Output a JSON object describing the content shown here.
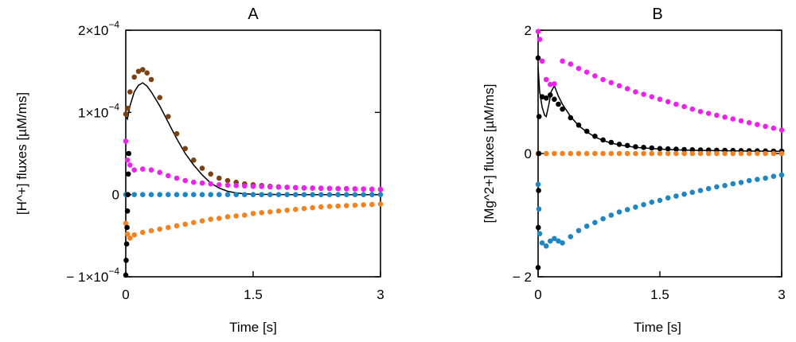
{
  "chart_data": [
    {
      "type": "scatter",
      "title": "A",
      "xlabel": "Time [s]",
      "ylabel": "[H^+] fluxes [µM/ms]",
      "xlim": [
        0,
        3
      ],
      "ylim": [
        -0.0001,
        0.0002
      ],
      "x_ticks": [
        {
          "value": 0,
          "label": "0"
        },
        {
          "value": 1.5,
          "label": "1.5"
        },
        {
          "value": 3,
          "label": "3"
        }
      ],
      "y_ticks": [
        {
          "value": 0.0002,
          "label": "2×10",
          "exp": "−4"
        },
        {
          "value": 0.0001,
          "label": "1×10",
          "exp": "−4"
        },
        {
          "value": 0,
          "label": "0",
          "exp": ""
        },
        {
          "value": -0.0001,
          "label": "− 1×10",
          "exp": "−4"
        }
      ],
      "grid": false,
      "series": [
        {
          "style": "line",
          "color": "#000000",
          "x": [
            0,
            0.02,
            0.05,
            0.1,
            0.15,
            0.2,
            0.25,
            0.3,
            0.4,
            0.5,
            0.6,
            0.7,
            0.8,
            0.9,
            1.0,
            1.1,
            1.2,
            1.3,
            1.4,
            1.5,
            1.7,
            2.0,
            2.3,
            2.6,
            3.0
          ],
          "y": [
            9.5e-05,
            9.2e-05,
            0.000108,
            0.000125,
            0.000133,
            0.000136,
            0.000132,
            0.000125,
            0.000108,
            8.8e-05,
            6.8e-05,
            5e-05,
            3.6e-05,
            2.4e-05,
            1.4e-05,
            8e-06,
            4e-06,
            2e-06,
            1e-06,
            5e-07,
            2e-07,
            0,
            0,
            0,
            0
          ]
        },
        {
          "style": "dots",
          "color": "#7b4113",
          "x": [
            0,
            0.02,
            0.05,
            0.1,
            0.15,
            0.2,
            0.25,
            0.3,
            0.4,
            0.5,
            0.6,
            0.7,
            0.8,
            0.9,
            1.0,
            1.1,
            1.2,
            1.3,
            1.4,
            1.5,
            1.6,
            1.7,
            1.8,
            1.9,
            2.0,
            2.1,
            2.2,
            2.3,
            2.4,
            2.5,
            2.6,
            2.7,
            2.8,
            2.9,
            3.0
          ],
          "y": [
            9.8e-05,
            0.000105,
            0.000125,
            0.000143,
            0.00015,
            0.000152,
            0.000148,
            0.00014,
            0.000118,
            9.5e-05,
            7.4e-05,
            5.6e-05,
            4.2e-05,
            3.2e-05,
            2.5e-05,
            2e-05,
            1.7e-05,
            1.5e-05,
            1.3e-05,
            1.2e-05,
            1.1e-05,
            1e-05,
            9.5e-06,
            9e-06,
            8.5e-06,
            8e-06,
            7.8e-06,
            7.6e-06,
            7.4e-06,
            7.2e-06,
            7e-06,
            6.8e-06,
            6.6e-06,
            6.4e-06,
            6.2e-06
          ]
        },
        {
          "style": "dots",
          "color": "#ee22ee",
          "x": [
            0,
            0.02,
            0.05,
            0.1,
            0.2,
            0.3,
            0.4,
            0.5,
            0.6,
            0.7,
            0.8,
            0.9,
            1.0,
            1.1,
            1.2,
            1.3,
            1.4,
            1.5,
            1.6,
            1.7,
            1.8,
            1.9,
            2.0,
            2.1,
            2.2,
            2.3,
            2.4,
            2.5,
            2.6,
            2.7,
            2.8,
            2.9,
            3.0
          ],
          "y": [
            6.5e-05,
            4.2e-05,
            3.6e-05,
            3e-05,
            3.1e-05,
            3e-05,
            2.7e-05,
            2.3e-05,
            2e-05,
            1.7e-05,
            1.5e-05,
            1.4e-05,
            1.3e-05,
            1.2e-05,
            1.15e-05,
            1.1e-05,
            1.05e-05,
            1e-05,
            9.7e-06,
            9.4e-06,
            9.1e-06,
            8.8e-06,
            8.5e-06,
            8.2e-06,
            8e-06,
            7.8e-06,
            7.6e-06,
            7.4e-06,
            7.2e-06,
            7e-06,
            6.8e-06,
            6.6e-06,
            6.4e-06
          ]
        },
        {
          "style": "dots",
          "color": "#1f86c4",
          "x": [
            0,
            0.1,
            0.2,
            0.3,
            0.4,
            0.5,
            0.6,
            0.7,
            0.8,
            0.9,
            1.0,
            1.1,
            1.2,
            1.3,
            1.4,
            1.5,
            1.6,
            1.7,
            1.8,
            1.9,
            2.0,
            2.1,
            2.2,
            2.3,
            2.4,
            2.5,
            2.6,
            2.7,
            2.8,
            2.9,
            3.0
          ],
          "y": [
            0,
            0,
            0,
            0,
            0,
            0,
            0,
            0,
            0,
            0,
            0,
            0,
            0,
            0,
            0,
            0,
            0,
            0,
            0,
            0,
            0,
            0,
            0,
            0,
            0,
            0,
            0,
            0,
            0,
            0,
            0
          ]
        },
        {
          "style": "dots",
          "color": "#f5811f",
          "x": [
            0,
            0.02,
            0.05,
            0.1,
            0.2,
            0.3,
            0.4,
            0.5,
            0.6,
            0.7,
            0.8,
            0.9,
            1.0,
            1.1,
            1.2,
            1.3,
            1.4,
            1.5,
            1.6,
            1.7,
            1.8,
            1.9,
            2.0,
            2.1,
            2.2,
            2.3,
            2.4,
            2.5,
            2.6,
            2.7,
            2.8,
            2.9,
            3.0
          ],
          "y": [
            -3.5e-05,
            -4.8e-05,
            -5.3e-05,
            -4.9e-05,
            -4.6e-05,
            -4.4e-05,
            -4.2e-05,
            -4e-05,
            -3.8e-05,
            -3.6e-05,
            -3.4e-05,
            -3.2e-05,
            -3e-05,
            -2.9e-05,
            -2.7e-05,
            -2.6e-05,
            -2.5e-05,
            -2.3e-05,
            -2.2e-05,
            -2.1e-05,
            -2e-05,
            -1.9e-05,
            -1.8e-05,
            -1.7e-05,
            -1.6e-05,
            -1.5e-05,
            -1.45e-05,
            -1.4e-05,
            -1.35e-05,
            -1.3e-05,
            -1.25e-05,
            -1.2e-05,
            -1.15e-05
          ]
        },
        {
          "style": "dots",
          "color": "#000000",
          "x": [
            0,
            0.005,
            0.01,
            0.015,
            0.02,
            0.025,
            0.03,
            0.035
          ],
          "y": [
            -9.8e-05,
            -8e-05,
            -6e-05,
            -4e-05,
            -2e-05,
            0,
            2.5e-05,
            5e-05
          ]
        }
      ]
    },
    {
      "type": "scatter",
      "title": "B",
      "xlabel": "Time [s]",
      "ylabel": "[Mg^2+] fluxes [µM/ms]",
      "xlim": [
        0,
        3
      ],
      "ylim": [
        -2,
        2
      ],
      "x_ticks": [
        {
          "value": 0,
          "label": "0"
        },
        {
          "value": 1.5,
          "label": "1.5"
        },
        {
          "value": 3,
          "label": "3"
        }
      ],
      "y_ticks": [
        {
          "value": 2,
          "label": "2",
          "exp": ""
        },
        {
          "value": 0,
          "label": "0",
          "exp": ""
        },
        {
          "value": -2,
          "label": "− 2",
          "exp": ""
        }
      ],
      "grid": false,
      "series": [
        {
          "style": "line",
          "color": "#000000",
          "x": [
            0,
            0.02,
            0.05,
            0.08,
            0.1,
            0.13,
            0.16,
            0.2,
            0.25,
            0.3,
            0.4,
            0.5,
            0.6,
            0.7,
            0.8,
            0.9,
            1.0,
            1.2,
            1.4,
            1.6,
            1.8,
            2.0,
            2.3,
            2.6,
            3.0
          ],
          "y": [
            1.4,
            1.0,
            0.75,
            0.62,
            0.6,
            0.78,
            1.0,
            1.1,
            0.93,
            0.8,
            0.6,
            0.45,
            0.35,
            0.27,
            0.21,
            0.17,
            0.14,
            0.1,
            0.08,
            0.065,
            0.055,
            0.05,
            0.045,
            0.04,
            0.035
          ]
        },
        {
          "style": "dots",
          "color": "#000000",
          "x": [
            0,
            0.05,
            0.1,
            0.15,
            0.2,
            0.25,
            0.3,
            0.4,
            0.5,
            0.6,
            0.7,
            0.8,
            0.9,
            1.0,
            1.1,
            1.2,
            1.3,
            1.4,
            1.5,
            1.6,
            1.7,
            1.8,
            1.9,
            2.0,
            2.1,
            2.2,
            2.3,
            2.4,
            2.5,
            2.6,
            2.7,
            2.8,
            2.9,
            3.0
          ],
          "y": [
            1.55,
            0.92,
            0.9,
            0.95,
            0.88,
            0.8,
            0.72,
            0.58,
            0.46,
            0.36,
            0.28,
            0.22,
            0.18,
            0.15,
            0.13,
            0.11,
            0.1,
            0.09,
            0.08,
            0.075,
            0.07,
            0.065,
            0.06,
            0.058,
            0.055,
            0.053,
            0.051,
            0.049,
            0.047,
            0.045,
            0.043,
            0.041,
            0.039,
            0.037
          ]
        },
        {
          "style": "dots",
          "color": "#ee22ee",
          "x": [
            0,
            0.02,
            0.05,
            0.1,
            0.15,
            0.2,
            0.3,
            0.4,
            0.5,
            0.6,
            0.7,
            0.8,
            0.9,
            1.0,
            1.1,
            1.2,
            1.3,
            1.4,
            1.5,
            1.6,
            1.7,
            1.8,
            1.9,
            2.0,
            2.1,
            2.2,
            2.3,
            2.4,
            2.5,
            2.6,
            2.7,
            2.8,
            2.9,
            3.0
          ],
          "y": [
            1.98,
            1.85,
            1.5,
            1.2,
            1.12,
            1.13,
            1.5,
            1.45,
            1.38,
            1.32,
            1.26,
            1.2,
            1.15,
            1.1,
            1.05,
            1.0,
            0.96,
            0.92,
            0.88,
            0.84,
            0.8,
            0.76,
            0.72,
            0.68,
            0.65,
            0.62,
            0.59,
            0.56,
            0.53,
            0.5,
            0.47,
            0.44,
            0.41,
            0.38
          ]
        },
        {
          "style": "dots",
          "color": "#f5811f",
          "x": [
            0,
            0.1,
            0.2,
            0.3,
            0.4,
            0.5,
            0.6,
            0.7,
            0.8,
            0.9,
            1.0,
            1.1,
            1.2,
            1.3,
            1.4,
            1.5,
            1.6,
            1.7,
            1.8,
            1.9,
            2.0,
            2.1,
            2.2,
            2.3,
            2.4,
            2.5,
            2.6,
            2.7,
            2.8,
            2.9,
            3.0
          ],
          "y": [
            0,
            0,
            0,
            0,
            0,
            0,
            0,
            0,
            0,
            0,
            0,
            0,
            0,
            0,
            0,
            0,
            0,
            0,
            0,
            0,
            0,
            0,
            0,
            0,
            0,
            0,
            0,
            0,
            0,
            0,
            0
          ]
        },
        {
          "style": "dots",
          "color": "#1f86c4",
          "x": [
            0,
            0.01,
            0.02,
            0.05,
            0.1,
            0.15,
            0.2,
            0.25,
            0.3,
            0.4,
            0.5,
            0.6,
            0.7,
            0.8,
            0.9,
            1.0,
            1.1,
            1.2,
            1.3,
            1.4,
            1.5,
            1.6,
            1.7,
            1.8,
            1.9,
            2.0,
            2.1,
            2.2,
            2.3,
            2.4,
            2.5,
            2.6,
            2.7,
            2.8,
            2.9,
            3.0
          ],
          "y": [
            -0.5,
            -0.9,
            -1.3,
            -1.45,
            -1.5,
            -1.42,
            -1.38,
            -1.42,
            -1.45,
            -1.35,
            -1.25,
            -1.18,
            -1.12,
            -1.06,
            -1.0,
            -0.95,
            -0.91,
            -0.87,
            -0.83,
            -0.79,
            -0.76,
            -0.72,
            -0.69,
            -0.66,
            -0.63,
            -0.6,
            -0.57,
            -0.54,
            -0.52,
            -0.49,
            -0.47,
            -0.44,
            -0.42,
            -0.4,
            -0.37,
            -0.35
          ]
        },
        {
          "style": "dots",
          "color": "#000000",
          "x": [
            0,
            0.003,
            0.006,
            0.009,
            0.012
          ],
          "y": [
            -1.85,
            -1.2,
            -0.6,
            0,
            0.6
          ]
        }
      ]
    }
  ]
}
